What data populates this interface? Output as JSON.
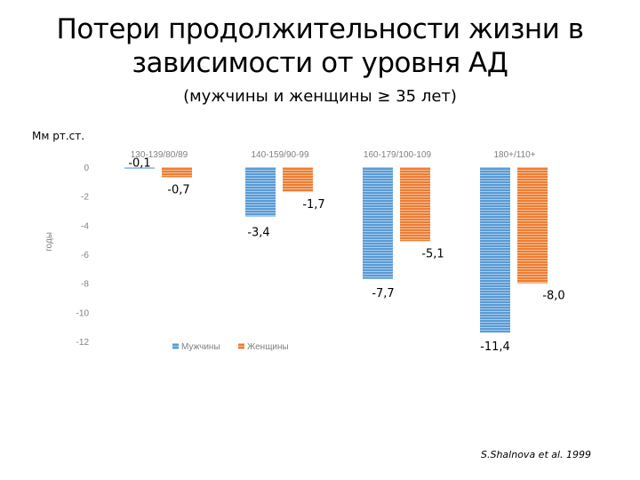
{
  "slide": {
    "title_line1": "Потери продолжительности жизни в",
    "title_line2": "зависимости от уровня АД",
    "subtitle": "(мужчины и женщины ≥ 35 лет)",
    "unit": "Мм рт.ст.",
    "source": "S.Shalnova et al. 1999"
  },
  "chart_data": {
    "type": "bar",
    "categories": [
      "130-139/80/89",
      "140-159/90-99",
      "160-179/100-109",
      "180+/110+"
    ],
    "series": [
      {
        "name": "Мужчины",
        "values": [
          -0.1,
          -3.4,
          -7.7,
          -11.4
        ],
        "color": "#5b9bd5",
        "labels": [
          "-0,1",
          "-3,4",
          "-7,7",
          "-11,4"
        ]
      },
      {
        "name": "Женщины",
        "values": [
          -0.7,
          -1.7,
          -5.1,
          -8.0
        ],
        "color": "#ed7d31",
        "labels": [
          "-0,7",
          "-1,7",
          "-5,1",
          "-8,0"
        ]
      }
    ],
    "ylabel": "годы",
    "ylim": [
      -12,
      0
    ],
    "yticks": [
      0,
      -2,
      -4,
      -6,
      -8,
      -10,
      -12
    ],
    "ytick_labels": [
      "0",
      "-2",
      "-4",
      "-6",
      "-8",
      "-10",
      "-12"
    ],
    "legend_position": "bottom",
    "grid": false
  }
}
